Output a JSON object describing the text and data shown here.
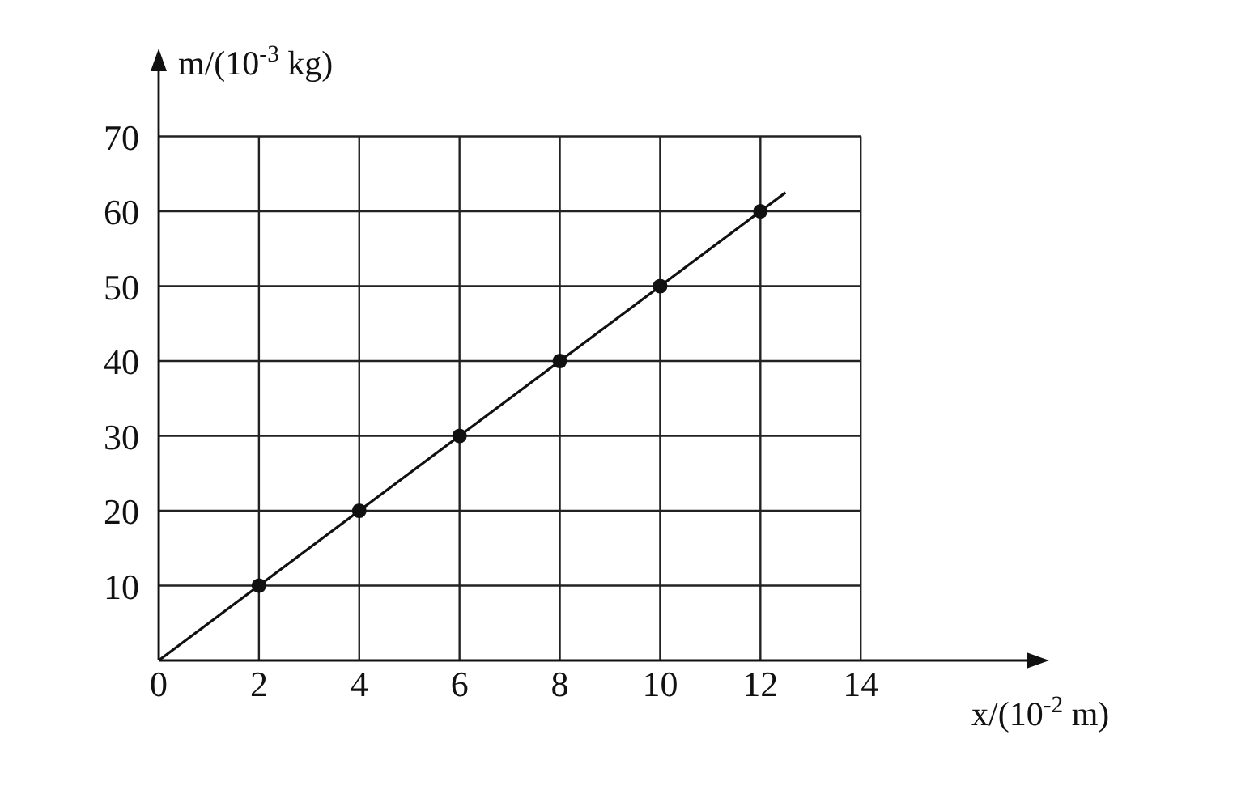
{
  "chart_data": {
    "type": "scatter",
    "xlabel": "x/(10$^{-2}$ m)",
    "ylabel": "m/(10$^{-3}$ kg)",
    "xlim": [
      0,
      17.5
    ],
    "ylim": [
      0,
      80
    ],
    "xticks": [
      0,
      2,
      4,
      6,
      8,
      10,
      12,
      14
    ],
    "yticks": [
      10,
      20,
      30,
      40,
      50,
      60,
      70
    ],
    "grid": true,
    "series": [
      {
        "marker": "circle",
        "color": "#111111",
        "x": [
          2,
          4,
          6,
          8,
          10,
          12
        ],
        "values": [
          10,
          20,
          30,
          40,
          50,
          60
        ]
      },
      {
        "type": "line",
        "marker": "none",
        "color": "#111111",
        "x": [
          0,
          12.5
        ],
        "values": [
          0,
          62.5
        ]
      }
    ]
  }
}
